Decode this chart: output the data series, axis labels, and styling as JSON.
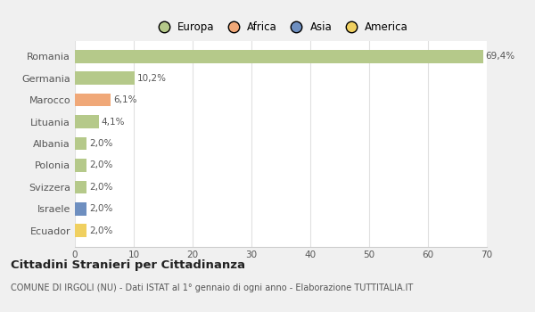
{
  "categories": [
    "Romania",
    "Germania",
    "Marocco",
    "Lituania",
    "Albania",
    "Polonia",
    "Svizzera",
    "Israele",
    "Ecuador"
  ],
  "values": [
    69.4,
    10.2,
    6.1,
    4.1,
    2.0,
    2.0,
    2.0,
    2.0,
    2.0
  ],
  "labels": [
    "69,4%",
    "10,2%",
    "6,1%",
    "4,1%",
    "2,0%",
    "2,0%",
    "2,0%",
    "2,0%",
    "2,0%"
  ],
  "colors": [
    "#b5c98a",
    "#b5c98a",
    "#f0a878",
    "#b5c98a",
    "#b5c98a",
    "#b5c98a",
    "#b5c98a",
    "#6e8fc0",
    "#f0d060"
  ],
  "legend_labels": [
    "Europa",
    "Africa",
    "Asia",
    "America"
  ],
  "legend_colors": [
    "#b5c98a",
    "#f0a878",
    "#6e8fc0",
    "#f0d060"
  ],
  "title": "Cittadini Stranieri per Cittadinanza",
  "subtitle": "COMUNE DI IRGOLI (NU) - Dati ISTAT al 1° gennaio di ogni anno - Elaborazione TUTTITALIA.IT",
  "xlim": [
    0,
    70
  ],
  "xticks": [
    0,
    10,
    20,
    30,
    40,
    50,
    60,
    70
  ],
  "bg_outer": "#f0f0f0",
  "bg_plot": "#ffffff",
  "grid_color": "#e0e0e0",
  "bar_height": 0.6,
  "label_fontsize": 7.5,
  "ytick_fontsize": 8.0,
  "xtick_fontsize": 7.5
}
